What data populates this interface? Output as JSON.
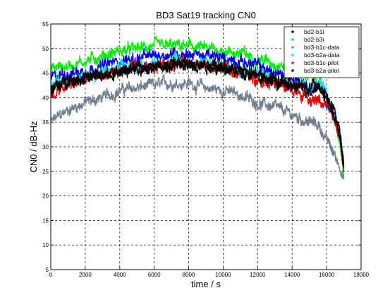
{
  "chart_data": {
    "type": "line",
    "title": "BD3 Sat19 tracking CN0",
    "xlabel": "time / s",
    "ylabel": "CN0 / dB-Hz",
    "xlim": [
      0,
      18000
    ],
    "ylim": [
      5,
      55
    ],
    "xticks": [
      0,
      2000,
      4000,
      6000,
      8000,
      10000,
      12000,
      14000,
      16000,
      18000
    ],
    "yticks": [
      5,
      10,
      15,
      20,
      25,
      30,
      35,
      40,
      45,
      50,
      55
    ],
    "grid": true,
    "legend_position": "top-right",
    "series": [
      {
        "name": "bd2-b1i",
        "color": "#000000",
        "x": [
          0,
          1000,
          2000,
          3000,
          4000,
          5000,
          6000,
          7000,
          8000,
          9000,
          10000,
          11000,
          12000,
          13000,
          14000,
          15000,
          15500,
          16000,
          16500,
          16800,
          17000
        ],
        "y": [
          41.5,
          43.5,
          44,
          44.5,
          45.5,
          46,
          46.5,
          47,
          47,
          46.5,
          46,
          45.5,
          44.5,
          43.5,
          42.5,
          41.5,
          43,
          40,
          36,
          31,
          25
        ]
      },
      {
        "name": "bd2-b3i",
        "color": "#00ee00",
        "x": [
          0,
          1000,
          2000,
          3000,
          4000,
          5000,
          6000,
          7000,
          8000,
          9000,
          10000,
          11000,
          12000,
          13000,
          14000,
          15000,
          15500,
          16000,
          16500,
          16800,
          17000
        ],
        "y": [
          46,
          46.5,
          47.5,
          48.5,
          49.5,
          50,
          50.5,
          50.5,
          50.5,
          50,
          49.5,
          49,
          48,
          47,
          46,
          44.5,
          43.5,
          40.5,
          35,
          30,
          23.5
        ]
      },
      {
        "name": "bd3-b1c-data",
        "color": "#708090",
        "x": [
          0,
          1000,
          2000,
          3000,
          4000,
          5000,
          6000,
          7000,
          8000,
          9000,
          10000,
          11000,
          12000,
          13000,
          14000,
          15000,
          15500,
          16000,
          16500,
          16800,
          17000
        ],
        "y": [
          35,
          37.5,
          39,
          40,
          41.5,
          42,
          42.5,
          43,
          43,
          42,
          41.5,
          40.5,
          39,
          38,
          36.5,
          35,
          34.5,
          31.5,
          28,
          26,
          23.5
        ]
      },
      {
        "name": "bd3-b2a-data",
        "color": "#00e5ff",
        "x": [
          0,
          1000,
          2000,
          3000,
          4000,
          5000,
          6000,
          7000,
          8000,
          9000,
          10000,
          11000,
          12000,
          13000,
          14000,
          15000,
          15500,
          16000,
          16500,
          16800,
          17000
        ],
        "y": [
          42.5,
          44,
          44.5,
          45,
          46,
          46.5,
          47,
          47.5,
          47.5,
          47,
          46.5,
          46,
          45,
          44,
          43,
          42,
          43,
          40.5,
          36.5,
          31.5,
          25.5
        ]
      },
      {
        "name": "bd3-b1c-pilot",
        "color": "#ee0000",
        "x": [
          0,
          1000,
          2000,
          3000,
          4000,
          5000,
          6000,
          7000,
          8000,
          9000,
          10000,
          11000,
          12000,
          13000,
          14000,
          15000,
          15500,
          16000,
          16500,
          16800,
          17000
        ],
        "y": [
          40,
          42.5,
          43.5,
          44.5,
          45.5,
          46,
          46.5,
          47,
          47,
          46.5,
          46,
          45,
          44,
          43,
          41.5,
          40,
          39.5,
          38.5,
          35,
          31,
          26
        ]
      },
      {
        "name": "bd3-b2a-pilot",
        "color": "#000000",
        "x": [
          0,
          1000,
          2000,
          3000,
          4000,
          5000,
          6000,
          7000,
          8000,
          9000,
          10000,
          11000,
          12000,
          13000,
          14000,
          15000,
          15500,
          16000,
          16500,
          16800,
          17000
        ],
        "y": [
          42,
          43.5,
          44,
          44.5,
          45.5,
          46,
          46.5,
          46.5,
          46.5,
          46.5,
          46,
          45.5,
          44.5,
          43.5,
          42.5,
          42,
          43,
          40.5,
          36.5,
          32,
          27
        ]
      },
      {
        "name": "",
        "color": "#0000ee",
        "x": [
          0,
          1000,
          2000,
          3000,
          4000,
          5000,
          6000,
          7000,
          8000,
          9000,
          10000,
          11000,
          12000,
          13000,
          14000,
          15000,
          15500,
          16000,
          16500,
          16800,
          17000
        ],
        "y": [
          44,
          45,
          45.5,
          46.5,
          47.5,
          48,
          48.5,
          49,
          49,
          48.5,
          48,
          47.5,
          46.5,
          45,
          44,
          42,
          42.5,
          39.5,
          35.5,
          30.5,
          26
        ]
      }
    ]
  }
}
